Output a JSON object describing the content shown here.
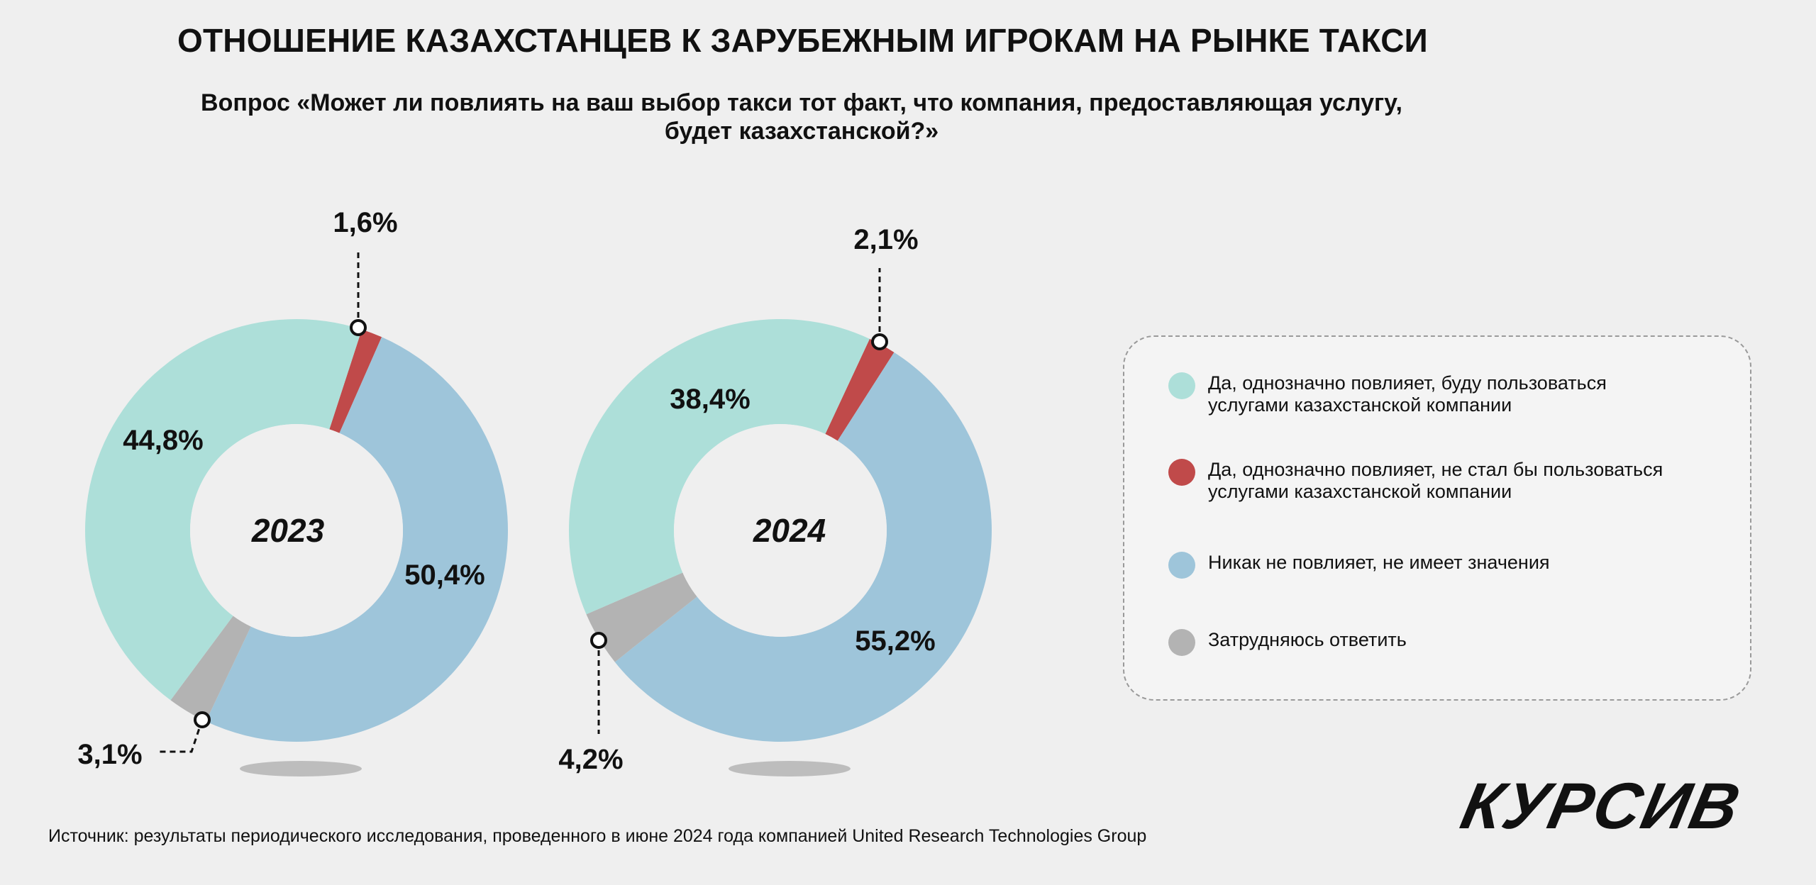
{
  "title": "ОТНОШЕНИЕ КАЗАХСТАНЦЕВ К ЗАРУБЕЖНЫМ ИГРОКАМ НА РЫНКЕ ТАКСИ",
  "subtitle_line1": "Вопрос «Может ли повлиять на ваш выбор такси тот факт, что компания, предоставляющая услугу,",
  "subtitle_line2": "будет казахстанской?»",
  "colors": {
    "teal": "#addfd9",
    "red": "#c04a4a",
    "blue": "#9ec5da",
    "gray": "#b3b3b3"
  },
  "legend": [
    {
      "color": "#addfd9",
      "line1": "Да, однозначно повлияет, буду пользоваться",
      "line2": "услугами казахстанской компании"
    },
    {
      "color": "#c04a4a",
      "line1": "Да, однозначно повлияет, не стал бы пользоваться",
      "line2": "услугами казахстанской компании"
    },
    {
      "color": "#9ec5da",
      "line1": "Никак не повлияет, не имеет значения",
      "line2": ""
    },
    {
      "color": "#b3b3b3",
      "line1": "Затрудняюсь ответить",
      "line2": ""
    }
  ],
  "chart_data": [
    {
      "type": "pie",
      "title": "2023",
      "series": [
        {
          "name": "Да, однозначно повлияет, не стал бы пользоваться услугами казахстанской компании",
          "value": 1.6,
          "label": "1,6%"
        },
        {
          "name": "Никак не повлияет, не имеет значения",
          "value": 50.4,
          "label": "50,4%"
        },
        {
          "name": "Затрудняюсь ответить",
          "value": 3.1,
          "label": "3,1%"
        },
        {
          "name": "Да, однозначно повлияет, буду пользоваться услугами казахстанской компании",
          "value": 44.8,
          "label": "44,8%"
        }
      ]
    },
    {
      "type": "pie",
      "title": "2024",
      "series": [
        {
          "name": "Да, однозначно повлияет, не стал бы пользоваться услугами казахстанской компании",
          "value": 2.1,
          "label": "2,1%"
        },
        {
          "name": "Никак не повлияет, не имеет значения",
          "value": 55.2,
          "label": "55,2%"
        },
        {
          "name": "Затрудняюсь ответить",
          "value": 4.2,
          "label": "4,2%"
        },
        {
          "name": "Да, однозначно повлияет, буду пользоваться услугами казахстанской компании",
          "value": 38.4,
          "label": "38,4%"
        }
      ]
    }
  ],
  "source": "Источник: результаты периодического исследования, проведенного в июне 2024 года компанией United Research Technologies Group",
  "logo_text": "КУРСИВ"
}
